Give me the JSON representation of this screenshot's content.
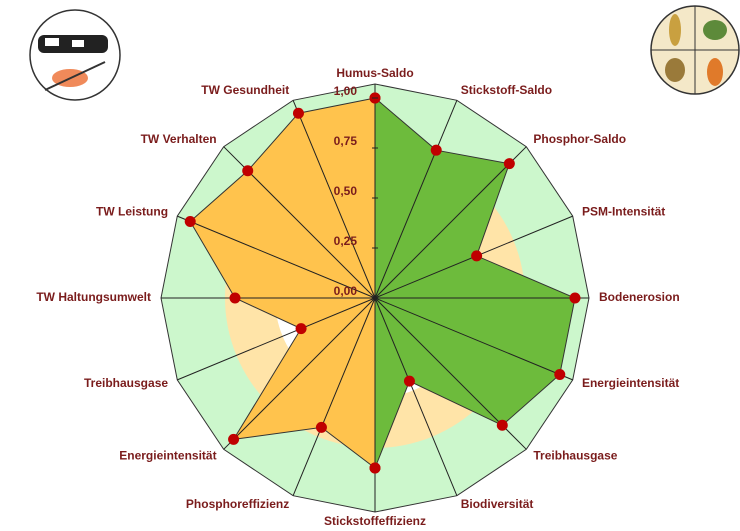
{
  "chart_data": {
    "type": "radar",
    "categories": [
      "Humus-Saldo",
      "Stickstoff-Saldo",
      "Phosphor-Saldo",
      "PSM-Intensität",
      "Bodenerosion",
      "Energieintensität",
      "Treibhausgase",
      "Biodiversität",
      "Stickstoffeffizienz",
      "Phosphoreffizienz",
      "Energieintensität",
      "Treibhausgase",
      "TW Haltungsumwelt",
      "TW Leistung",
      "TW Verhalten",
      "TW Gesundheit"
    ],
    "series": [
      {
        "color": "#6dbb3c",
        "values": [
          1.0,
          0.8,
          0.95,
          0.55,
          1.0,
          1.0,
          0.9,
          0.45,
          0.85,
          null,
          null,
          null,
          null,
          null,
          null,
          null
        ]
      },
      {
        "color": "#ffc34d",
        "values": [
          1.0,
          null,
          null,
          null,
          null,
          null,
          null,
          null,
          0.85,
          0.7,
          1.0,
          0.4,
          0.7,
          1.0,
          0.9,
          1.0
        ]
      }
    ],
    "ylim": [
      0,
      1
    ],
    "yticks": [
      {
        "value": 0,
        "label": "0,00"
      },
      {
        "value": 0.25,
        "label": "0,25"
      },
      {
        "value": 0.5,
        "label": "0,50"
      },
      {
        "value": 0.75,
        "label": "0,75"
      },
      {
        "value": 1,
        "label": "1,00"
      }
    ]
  }
}
